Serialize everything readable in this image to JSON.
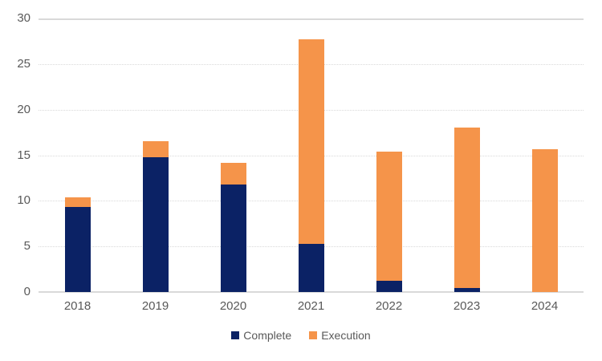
{
  "chart_data": {
    "type": "bar",
    "stacked": true,
    "title": "",
    "xlabel": "",
    "ylabel": "",
    "categories": [
      "2018",
      "2019",
      "2020",
      "2021",
      "2022",
      "2023",
      "2024"
    ],
    "series": [
      {
        "name": "Complete",
        "color": "#0B2265",
        "values": [
          9.3,
          14.8,
          11.8,
          5.3,
          1.2,
          0.4,
          0
        ]
      },
      {
        "name": "Execution",
        "color": "#F5944A",
        "values": [
          1.1,
          1.7,
          2.4,
          22.4,
          14.2,
          17.6,
          15.7
        ]
      }
    ],
    "totals": [
      10.4,
      16.5,
      14.2,
      27.7,
      15.4,
      18.0,
      15.7
    ],
    "ylim": [
      0,
      30
    ],
    "yticks": [
      0,
      5,
      10,
      15,
      20,
      25,
      30
    ],
    "grid": "horizontal, dotted, solid line at top (30) and baseline (0)",
    "legend_position": "bottom-center"
  },
  "styles": {
    "axis_text_color": "#595959",
    "gridline_color": "#D9D9D9",
    "complete_color": "#0B2265",
    "execution_color": "#F5944A",
    "background": "#FFFFFF"
  }
}
